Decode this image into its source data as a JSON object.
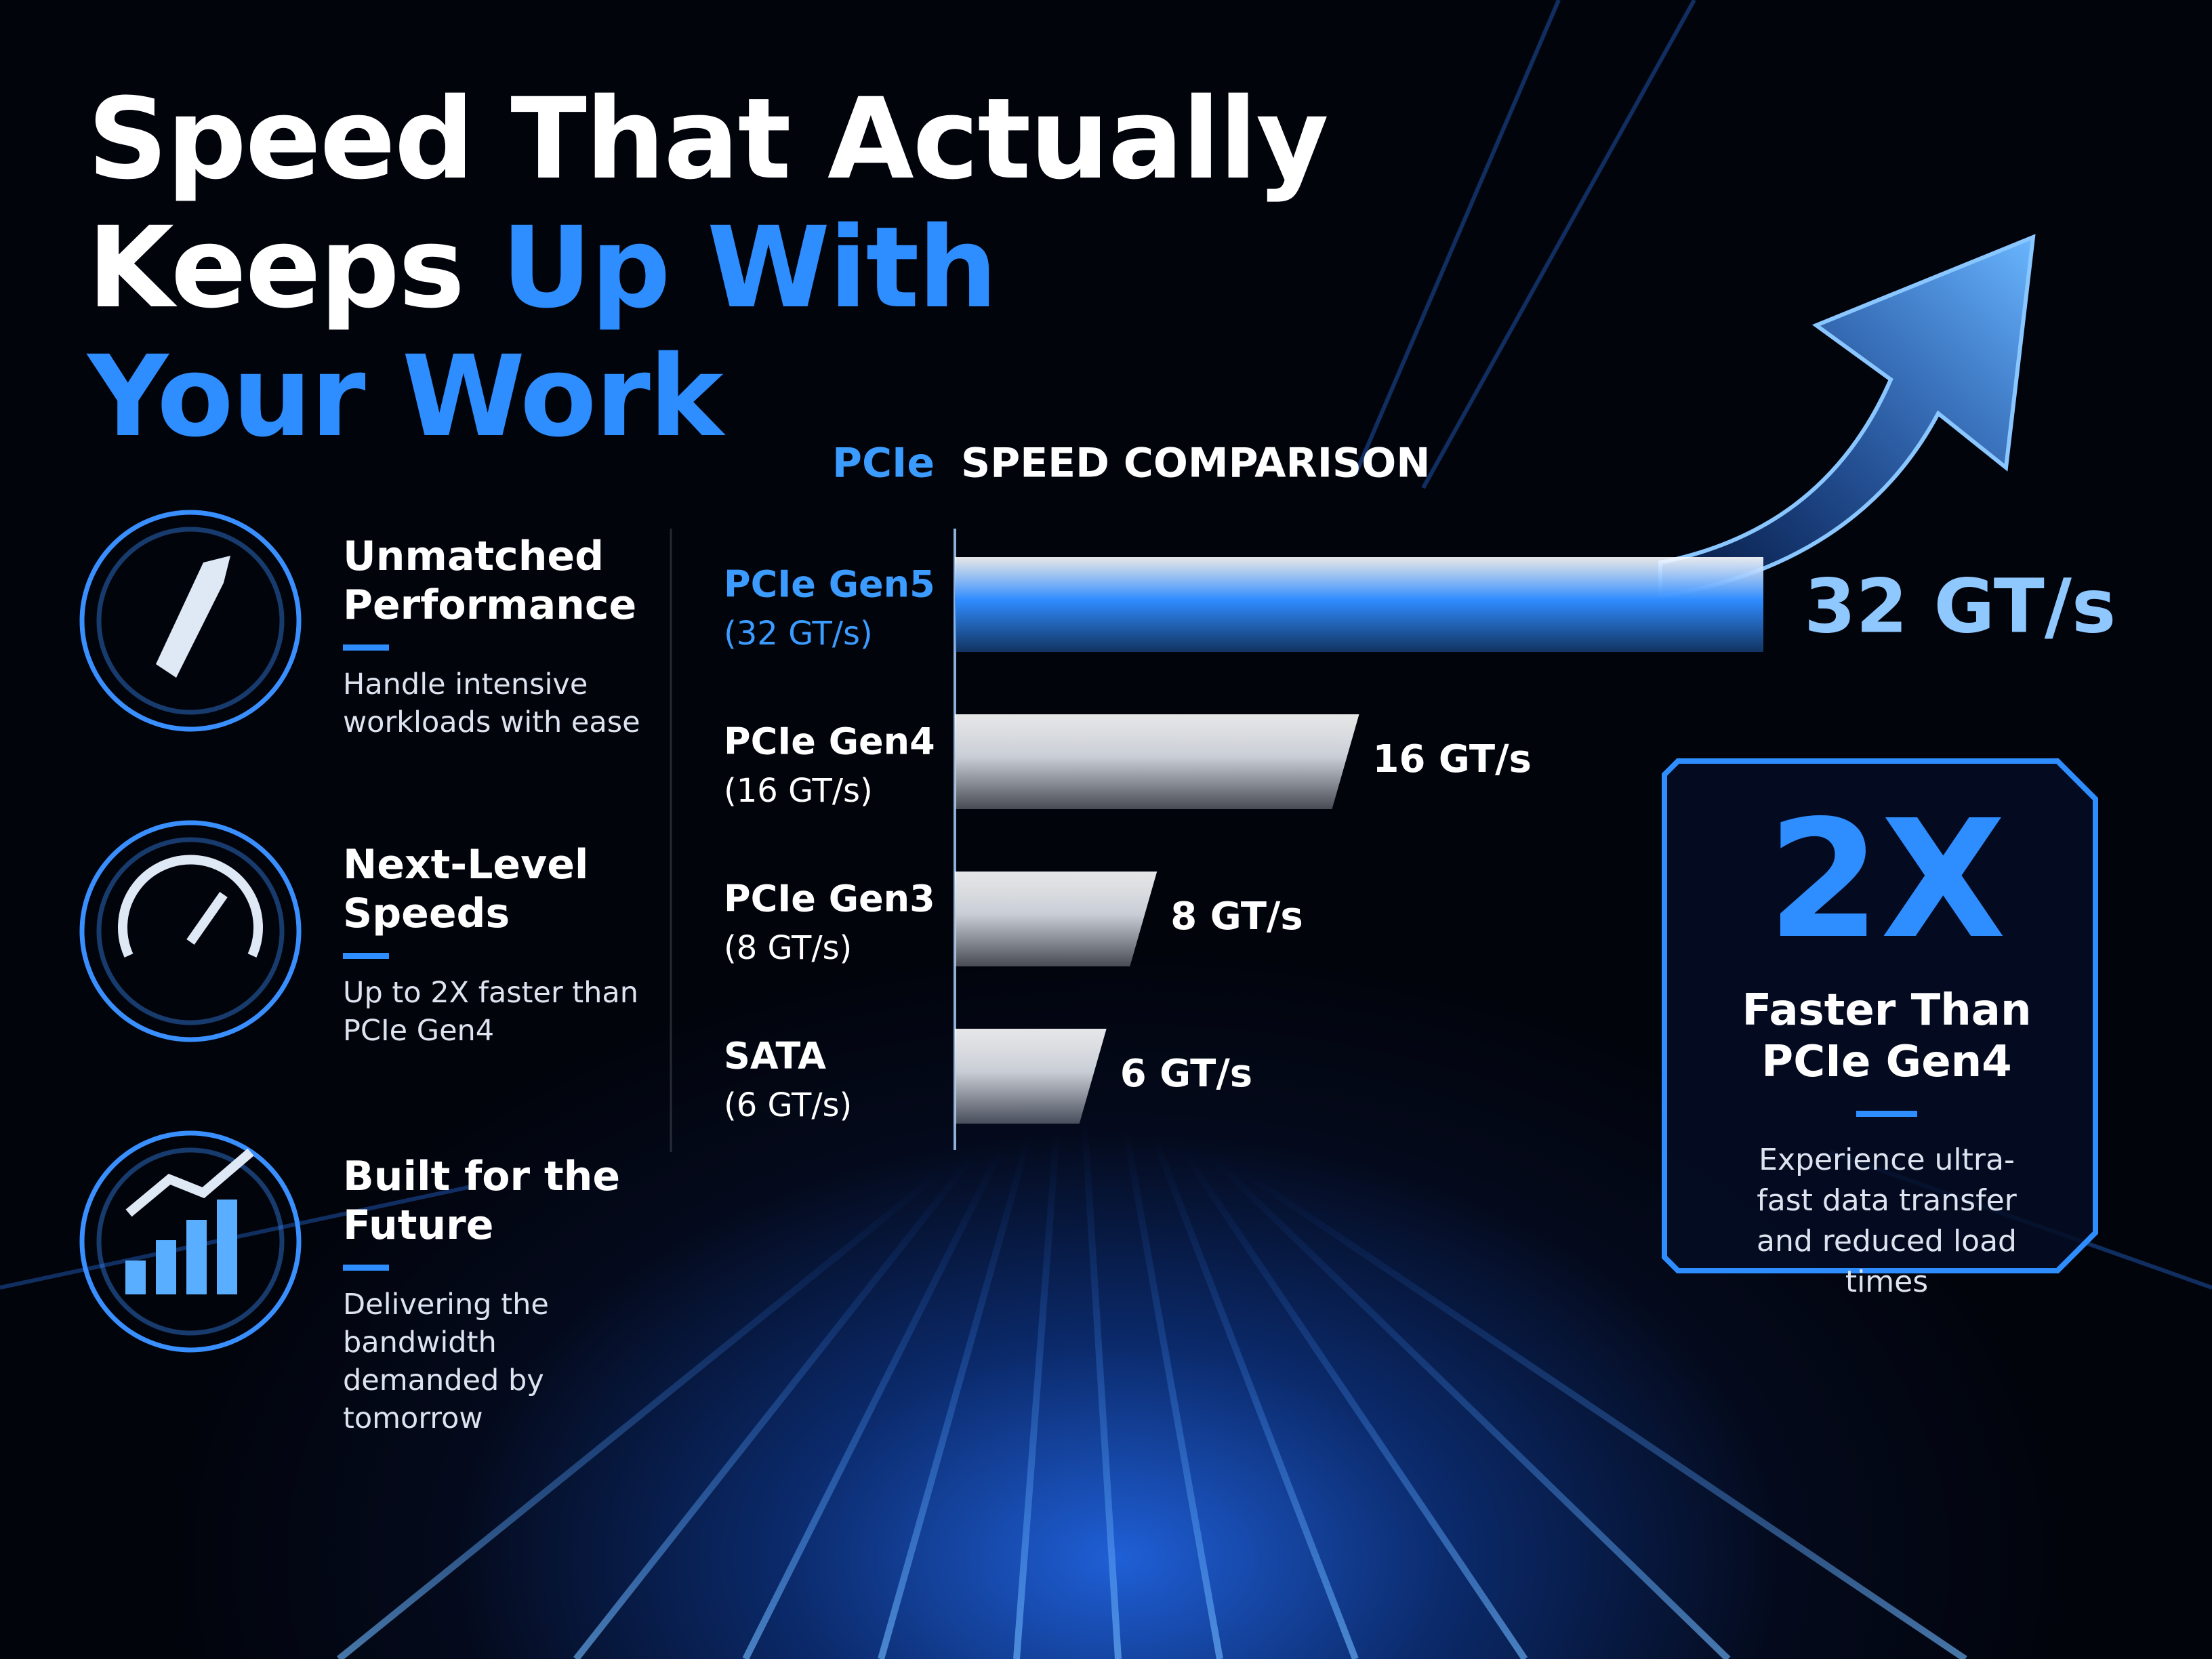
{
  "title_lines": [
    [
      "Speed That Actually"
    ],
    [
      "Keeps ",
      "Up With"
    ],
    [
      "Your Work"
    ]
  ],
  "features": [
    {
      "heading": "Unmatched Performance",
      "description": "Handle intensive workloads with ease"
    },
    {
      "heading": "Next-Level Speeds",
      "description": "Up to 2X faster than PCIe Gen4"
    },
    {
      "heading": "Built for the Future",
      "description": "Delivering the bandwidth demanded by tomorrow"
    }
  ],
  "chart_data": {
    "type": "bar",
    "orientation": "horizontal",
    "title_parts": [
      "PCIe",
      "SPEED COMPARISON"
    ],
    "categories": [
      "PCIe Gen5",
      "PCIe Gen4",
      "PCIe Gen3",
      "SATA"
    ],
    "sublabels": [
      "(32 GT/s)",
      "(16 GT/s)",
      "(8 GT/s)",
      "(6 GT/s)"
    ],
    "values": [
      32,
      16,
      8,
      6
    ],
    "value_labels": [
      "32 GT/s",
      "16 GT/s",
      "8 GT/s",
      "6 GT/s"
    ],
    "colors": [
      "#2f8cff",
      "#c9ced6",
      "#c9ced6",
      "#c9ced6"
    ],
    "label_colors": [
      "#3b9bff",
      "#ffffff",
      "#ffffff",
      "#ffffff"
    ]
  },
  "callout": {
    "big": "2X",
    "heading": "Faster Than PCIe Gen4",
    "description": "Experience ultra-fast data transfer and reduced load times"
  }
}
